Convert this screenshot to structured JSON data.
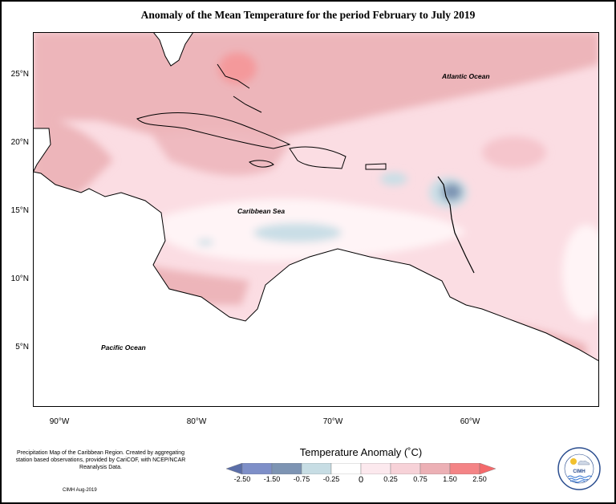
{
  "title": "Anomaly of the Mean Temperature for the period February to July 2019",
  "labels": {
    "atlantic": "Atlantic Ocean",
    "caribbean": "Caribbean Sea",
    "pacific": "Pacific Ocean"
  },
  "lat_ticks": [
    "25°N",
    "20°N",
    "15°N",
    "10°N",
    "5°N"
  ],
  "lon_ticks": [
    "90°W",
    "80°W",
    "70°W",
    "60°W"
  ],
  "note": "Precipitation Map of the Caribbean Region. Created by aggregating station based observations, provided by CariCOF, with NCEP/NCAR Reanalysis Data.",
  "credit": "CIMH Aug-2019",
  "legend": {
    "title": "Temperature Anomaly (˚C)",
    "ticks": [
      "-2.50",
      "-1.50",
      "-0.75",
      "-0.25",
      "0",
      "0.25",
      "0.75",
      "1.50",
      "2.50"
    ],
    "colors": [
      "#5b6ea8",
      "#7e8fc8",
      "#7d94b3",
      "#c7dde4",
      "#ffffff",
      "#fce9ee",
      "#f7d2d8",
      "#ecb0b5",
      "#f48486",
      "#f4696b"
    ]
  },
  "logo_text": "CIMH"
}
